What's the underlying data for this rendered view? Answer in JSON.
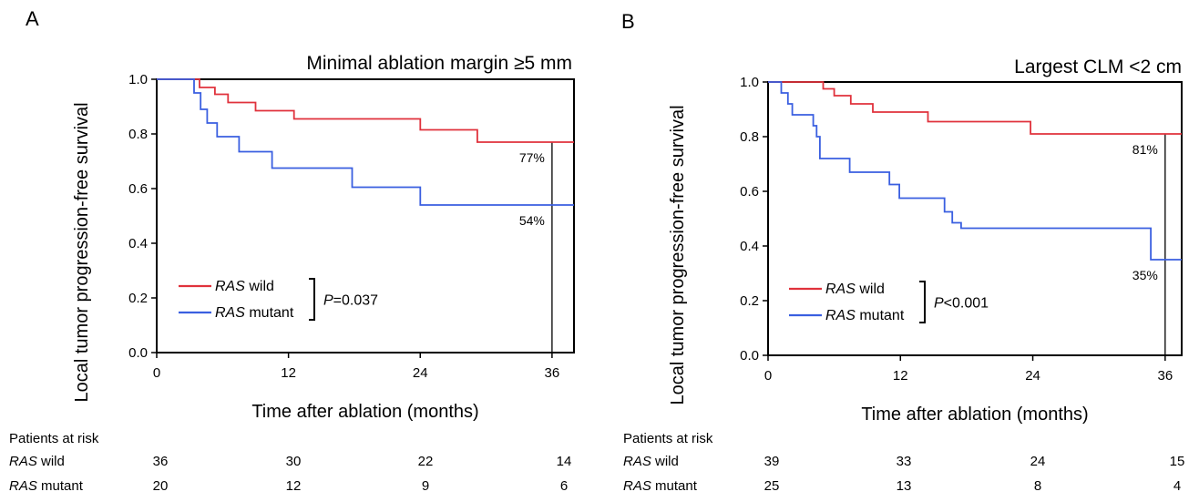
{
  "chart_data": [
    {
      "type": "line",
      "panel_letter": "A",
      "title": "Minimal ablation margin ≥5 mm",
      "xlabel": "Time after ablation (months)",
      "ylabel": "Local tumor progression-free survival",
      "xlim": [
        0,
        38
      ],
      "ylim": [
        0,
        1.0
      ],
      "xticks": [
        "0",
        "12",
        "24",
        "36"
      ],
      "yticks": [
        "0.0",
        "0.2",
        "0.4",
        "0.6",
        "0.8",
        "1.0"
      ],
      "series": [
        {
          "label_italic": "RAS",
          "label_rest": " wild",
          "color": "#e0323c",
          "x": [
            0,
            3.9,
            3.9,
            5.3,
            5.3,
            6.5,
            6.5,
            9,
            9,
            12.5,
            12.5,
            24,
            24,
            29.2,
            29.2,
            38
          ],
          "y": [
            1,
            1,
            0.97,
            0.97,
            0.945,
            0.945,
            0.915,
            0.915,
            0.885,
            0.885,
            0.855,
            0.855,
            0.815,
            0.815,
            0.77,
            0.77
          ],
          "end_label": "77%"
        },
        {
          "label_italic": "RAS",
          "label_rest": " mutant",
          "color": "#3a5fe0",
          "x": [
            0,
            3.4,
            3.4,
            4,
            4,
            4.6,
            4.6,
            5.5,
            5.5,
            7.5,
            7.5,
            10.5,
            10.5,
            17.8,
            17.8,
            24,
            24,
            38
          ],
          "y": [
            1,
            1,
            0.95,
            0.95,
            0.89,
            0.89,
            0.84,
            0.84,
            0.79,
            0.79,
            0.735,
            0.735,
            0.675,
            0.675,
            0.605,
            0.605,
            0.54,
            0.54
          ],
          "end_label": "54%"
        }
      ],
      "legend": "bottom-left",
      "pvalue_italic": "P",
      "pvalue_rest": "=0.037",
      "risk_table": {
        "title": "Patients at risk",
        "rows": [
          {
            "label_italic": "RAS",
            "label_rest": " wild",
            "values": [
              "36",
              "30",
              "22",
              "14"
            ]
          },
          {
            "label_italic": "RAS",
            "label_rest": " mutant",
            "values": [
              "20",
              "12",
              "9",
              "6"
            ]
          }
        ]
      }
    },
    {
      "type": "line",
      "panel_letter": "B",
      "title": "Largest CLM <2 cm",
      "xlabel": "Time after ablation (months)",
      "ylabel": "Local tumor progression-free survival",
      "xlim": [
        0,
        37.5
      ],
      "ylim": [
        0,
        1.0
      ],
      "xticks": [
        "0",
        "12",
        "24",
        "36"
      ],
      "yticks": [
        "0.0",
        "0.2",
        "0.4",
        "0.6",
        "0.8",
        "1.0"
      ],
      "series": [
        {
          "label_italic": "RAS",
          "label_rest": " wild",
          "color": "#e0323c",
          "x": [
            0,
            5,
            5,
            6,
            6,
            7.5,
            7.5,
            9.5,
            9.5,
            14.5,
            14.5,
            23.8,
            23.8,
            28.5,
            28.5,
            37.5
          ],
          "y": [
            1,
            1,
            0.975,
            0.975,
            0.95,
            0.95,
            0.92,
            0.92,
            0.89,
            0.89,
            0.855,
            0.855,
            0.81,
            0.81,
            0.81,
            0.81
          ],
          "end_label": "81%"
        },
        {
          "label_italic": "RAS",
          "label_rest": " mutant",
          "color": "#3a5fe0",
          "x": [
            0,
            1.2,
            1.2,
            1.8,
            1.8,
            2.2,
            2.2,
            4.1,
            4.1,
            4.4,
            4.4,
            4.7,
            4.7,
            7.4,
            7.4,
            11,
            11,
            11.9,
            11.9,
            16,
            16,
            16.7,
            16.7,
            17.5,
            17.5,
            34.7,
            34.7,
            37.5
          ],
          "y": [
            1,
            1,
            0.96,
            0.96,
            0.92,
            0.92,
            0.88,
            0.88,
            0.84,
            0.84,
            0.8,
            0.8,
            0.72,
            0.72,
            0.67,
            0.67,
            0.625,
            0.625,
            0.575,
            0.575,
            0.525,
            0.525,
            0.485,
            0.485,
            0.465,
            0.465,
            0.35,
            0.35
          ],
          "end_label": "35%"
        }
      ],
      "legend": "bottom-left",
      "pvalue_italic": "P",
      "pvalue_rest": "<0.001",
      "risk_table": {
        "title": "Patients at risk",
        "rows": [
          {
            "label_italic": "RAS",
            "label_rest": " wild",
            "values": [
              "39",
              "33",
              "24",
              "15"
            ]
          },
          {
            "label_italic": "RAS",
            "label_rest": " mutant",
            "values": [
              "25",
              "13",
              "8",
              "4"
            ]
          }
        ]
      }
    }
  ]
}
